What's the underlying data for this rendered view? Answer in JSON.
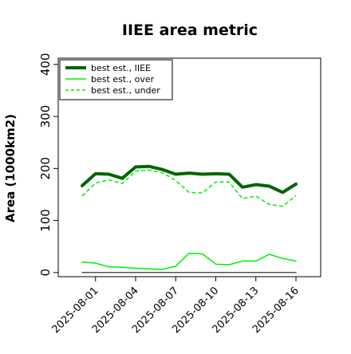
{
  "chart_data": {
    "type": "line",
    "title": "IIEE area metric",
    "xlabel": "",
    "ylabel": "Area (1000km2)",
    "ylim": [
      -8,
      412
    ],
    "yticks": [
      0,
      100,
      200,
      300,
      400
    ],
    "x": [
      "2025-07-31",
      "2025-08-01",
      "2025-08-02",
      "2025-08-03",
      "2025-08-04",
      "2025-08-05",
      "2025-08-06",
      "2025-08-07",
      "2025-08-08",
      "2025-08-09",
      "2025-08-10",
      "2025-08-11",
      "2025-08-12",
      "2025-08-13",
      "2025-08-14",
      "2025-08-15",
      "2025-08-16"
    ],
    "xtick_labels": [
      "2025-08-01",
      "2025-08-04",
      "2025-08-07",
      "2025-08-10",
      "2025-08-13",
      "2025-08-16"
    ],
    "legend_position": "top-left",
    "series": [
      {
        "name": "best est., IIEE",
        "color": "#006400",
        "style": "solid",
        "width": "thick",
        "values": [
          167,
          190,
          189,
          181,
          203,
          204,
          198,
          189,
          191,
          189,
          190,
          189,
          164,
          169,
          166,
          154,
          170
        ]
      },
      {
        "name": "best est., over",
        "color": "#00ee00",
        "style": "solid",
        "width": "thin",
        "values": [
          20,
          18,
          11,
          10,
          8,
          7,
          6,
          12,
          37,
          36,
          16,
          15,
          22,
          22,
          35,
          27,
          22
        ]
      },
      {
        "name": "best est., under",
        "color": "#00ee00",
        "style": "dashed",
        "width": "thin",
        "values": [
          147,
          172,
          178,
          171,
          195,
          197,
          192,
          177,
          154,
          153,
          174,
          174,
          142,
          147,
          131,
          127,
          148
        ]
      },
      {
        "name": "",
        "color": "#555555",
        "style": "solid",
        "width": "thin",
        "values": [
          0,
          0,
          0,
          0,
          0,
          0,
          0,
          0,
          0,
          0,
          0,
          0,
          0,
          0,
          0,
          0,
          0
        ]
      }
    ]
  }
}
